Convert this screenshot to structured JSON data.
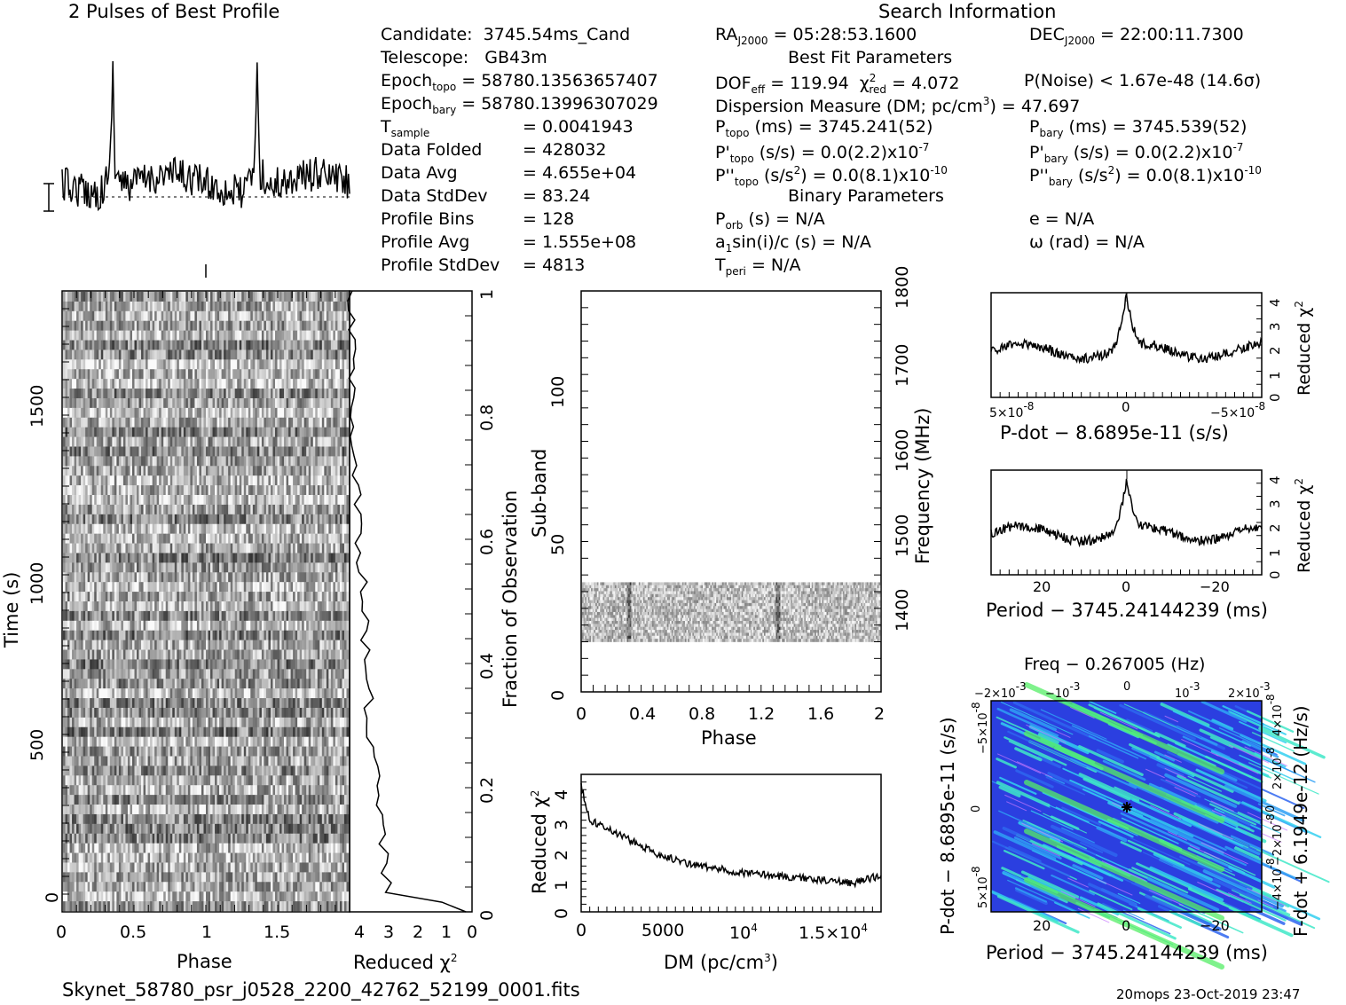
{
  "header": {
    "profile_title": "2 Pulses of Best Profile",
    "search_title": "Search Information",
    "footer_file": "Skynet_58780_psr_j0528_2200_42762_52199_0001.fits",
    "footer_stamp": "20mops 23-Oct-2019 23:47"
  },
  "info_left": [
    {
      "key": "Candidate:",
      "val": "3745.54ms_Cand"
    },
    {
      "key": "Telescope:",
      "val": "GB43m"
    },
    {
      "key": "Epoch",
      "sub": "topo",
      "val": "= 58780.13563657407"
    },
    {
      "key": "Epoch",
      "sub": "bary",
      "val": "= 58780.13996307029"
    },
    {
      "key": "T",
      "sub": "sample",
      "val": "= 0.0041943"
    },
    {
      "key": "Data Folded",
      "val": "= 428032"
    },
    {
      "key": "Data Avg",
      "val": "= 4.655e+04"
    },
    {
      "key": "Data StdDev",
      "val": "= 83.24"
    },
    {
      "key": "Profile Bins",
      "val": "= 128"
    },
    {
      "key": "Profile Avg",
      "val": "= 1.555e+08"
    },
    {
      "key": "Profile StdDev",
      "val": "= 4813"
    }
  ],
  "info_mid": {
    "ra": "= 05:28:53.1600",
    "best_fit": "Best Fit Parameters",
    "dof": "= 119.94",
    "chi2": "= 4.072",
    "dm": "Dispersion Measure (DM; pc/cm",
    "dm_val": ") = 47.697",
    "ptopo": "(ms) =  3745.241(52)",
    "pdtopo": "(s/s) = 0.0(2.2)x10",
    "pdtopo_exp": "-7",
    "pddtopo": "(s/s",
    "pddtopo_val": ") = 0.0(8.1)x10",
    "pddtopo_exp": "-10",
    "binary": "Binary Parameters",
    "porb": "(s) = N/A",
    "a1": "sin(i)/c (s) = N/A",
    "tperi": "= N/A"
  },
  "info_right": {
    "dec": "= 22:00:11.7300",
    "pnoise": "P(Noise) < 1.67e-48  (14.6σ)",
    "pbary": "(ms) =  3745.539(52)",
    "pdbary": "(s/s) = 0.0(2.2)x10",
    "pdbary_exp": "-7",
    "pddbary": "(s/s",
    "pddbary_val": ") = 0.0(8.1)x10",
    "pddbary_exp": "-10",
    "e": "e = N/A",
    "omega": "ω (rad) = N/A"
  },
  "axes": {
    "time_label": "Time (s)",
    "phase_label": "Phase",
    "redchi_label": "Reduced χ",
    "frac_label": "Fraction of Observation",
    "subband_label": "Sub-band",
    "freq_label": "Frequency (MHz)",
    "dm_label": "DM (pc/cm",
    "pdot_label": "P-dot − 8.6895e-11 (s/s)",
    "period_label": "Period − 3745.24144239 (ms)",
    "period_label2": "Period − 3745.24144239 (ms)",
    "freq_top_label": "Freq − 0.267005 (Hz)",
    "pdot_y_label": "P-dot − 8.6895e-11 (s/s)",
    "fdot_label": "F-dot + 6.1949e-12 (Hz/s)",
    "time_ticks": [
      "0",
      "500",
      "1000",
      "1500"
    ],
    "phase_ticks": [
      "0",
      "0.5",
      "1",
      "1.5"
    ],
    "chi_ticks": [
      "4",
      "3",
      "2",
      "1",
      "0"
    ],
    "frac_ticks": [
      "0",
      "0.2",
      "0.4",
      "0.6",
      "0.8",
      "1"
    ],
    "sub_ticks": [
      "0",
      "50",
      "100"
    ],
    "freq_ticks": [
      "1400",
      "1500",
      "1600",
      "1700",
      "1800"
    ],
    "sub_phase_ticks": [
      "0",
      "0.4",
      "0.8",
      "1.2",
      "1.6",
      "2"
    ],
    "dm_ticks": [
      "0",
      "5000",
      "10",
      "1.5×10"
    ],
    "dm_chi_ticks": [
      "0",
      "1",
      "2",
      "3",
      "4"
    ],
    "pd_ticks": [
      "5×10",
      "0",
      "−5×10"
    ],
    "pd_chi_ticks": [
      "0",
      "1",
      "2",
      "3",
      "4"
    ],
    "per_ticks": [
      "20",
      "0",
      "−20"
    ],
    "freq_top_ticks": [
      "−2×10",
      "−10",
      "0",
      "10",
      "2×10"
    ],
    "pdot_y_ticks": [
      "−5×10",
      "0",
      "5×10"
    ],
    "fdot_ticks": [
      "4×10",
      "2×10",
      "0",
      "−2×10",
      "−4×10"
    ]
  },
  "chart_data": [
    {
      "type": "line",
      "title": "2 Pulses of Best Profile",
      "xlabel": "",
      "ylabel": "",
      "x_range": [
        0,
        2
      ],
      "peaks_phase": [
        0.35,
        1.35
      ]
    },
    {
      "type": "heatmap",
      "xlabel": "Phase",
      "ylabel": "Time (s)",
      "x_range": [
        0,
        2
      ],
      "y_range": [
        0,
        1760
      ]
    },
    {
      "type": "line",
      "xlabel": "Reduced χ2",
      "ylabel": "Fraction of Observation",
      "x_range": [
        4,
        0
      ],
      "y_range": [
        0,
        1
      ]
    },
    {
      "type": "heatmap",
      "xlabel": "Phase",
      "ylabel": "Sub-band",
      "x_range": [
        0,
        2
      ],
      "y_range": [
        0,
        128
      ],
      "occupied_subbands": [
        16,
        35
      ],
      "freq_range_mhz": [
        1350,
        1800
      ]
    },
    {
      "type": "line",
      "xlabel": "DM (pc/cm3)",
      "ylabel": "Reduced χ2",
      "x_range": [
        0,
        17500
      ],
      "y_range": [
        0,
        4.5
      ],
      "x": [
        0,
        500,
        2000,
        4000,
        6000,
        8000,
        10000,
        12000,
        14000,
        16000,
        17500
      ],
      "y": [
        4.1,
        3.0,
        2.6,
        2.0,
        1.6,
        1.4,
        1.25,
        1.15,
        1.05,
        0.95,
        1.2
      ]
    },
    {
      "type": "line",
      "xlabel": "P-dot − 8.6895e-11 (s/s)",
      "ylabel": "Reduced χ2",
      "y_range": [
        0,
        4.3
      ],
      "peak_y": 4.07
    },
    {
      "type": "line",
      "xlabel": "Period − 3745.24144239 (ms)",
      "ylabel": "Reduced χ2",
      "x_range": [
        30,
        -30
      ],
      "y_range": [
        0,
        4.3
      ],
      "peak_y": 3.6
    },
    {
      "type": "heatmap",
      "title": "Freq − 0.267005 (Hz)",
      "xlabel": "Period − 3745.24144239 (ms)",
      "ylabel": "P-dot − 8.6895e-11 (s/s)",
      "x_range": [
        30,
        -30
      ]
    }
  ]
}
